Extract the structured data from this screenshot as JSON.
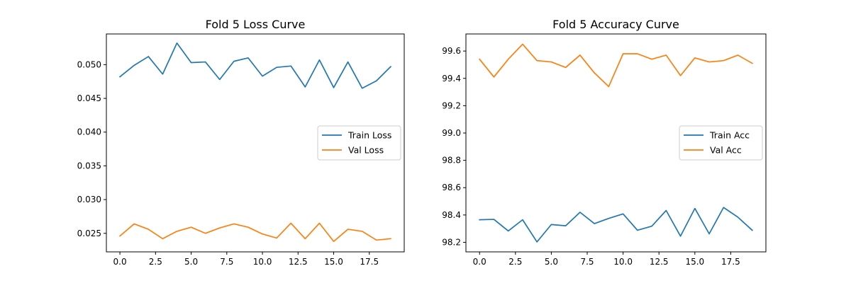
{
  "chart_data": [
    {
      "type": "line",
      "title": "Fold 5 Loss Curve",
      "xlabel": "",
      "ylabel": "",
      "xlim": [
        -0.95,
        19.95
      ],
      "ylim": [
        0.02225,
        0.05455
      ],
      "x_ticks": [
        0.0,
        2.5,
        5.0,
        7.5,
        10.0,
        12.5,
        15.0,
        17.5
      ],
      "x_tick_labels": [
        "0.0",
        "2.5",
        "5.0",
        "7.5",
        "10.0",
        "12.5",
        "15.0",
        "17.5"
      ],
      "y_ticks": [
        0.025,
        0.03,
        0.035,
        0.04,
        0.045,
        0.05
      ],
      "y_tick_labels": [
        "0.025",
        "0.030",
        "0.035",
        "0.040",
        "0.045",
        "0.050"
      ],
      "grid": false,
      "legend_position": "center-right",
      "x": [
        0,
        1,
        2,
        3,
        4,
        5,
        6,
        7,
        8,
        9,
        10,
        11,
        12,
        13,
        14,
        15,
        16,
        17,
        18,
        19
      ],
      "series": [
        {
          "name": "Train Loss",
          "color": "#1f77b4",
          "values": [
            0.0482,
            0.0499,
            0.0512,
            0.0486,
            0.0532,
            0.0503,
            0.0504,
            0.0478,
            0.0505,
            0.051,
            0.0483,
            0.0496,
            0.0498,
            0.0467,
            0.0507,
            0.0466,
            0.0504,
            0.0465,
            0.0476,
            0.0497
          ]
        },
        {
          "name": "Val Loss",
          "color": "#ff7f0e",
          "values": [
            0.0246,
            0.0264,
            0.0256,
            0.0242,
            0.0253,
            0.0259,
            0.025,
            0.0258,
            0.0264,
            0.0259,
            0.0249,
            0.0243,
            0.0265,
            0.0242,
            0.0265,
            0.0238,
            0.0256,
            0.0253,
            0.024,
            0.0242
          ]
        }
      ]
    },
    {
      "type": "line",
      "title": "Fold 5 Accuracy Curve",
      "xlabel": "",
      "ylabel": "",
      "xlim": [
        -0.95,
        19.95
      ],
      "ylim": [
        98.13,
        99.725
      ],
      "x_ticks": [
        0.0,
        2.5,
        5.0,
        7.5,
        10.0,
        12.5,
        15.0,
        17.5
      ],
      "x_tick_labels": [
        "0.0",
        "2.5",
        "5.0",
        "7.5",
        "10.0",
        "12.5",
        "15.0",
        "17.5"
      ],
      "y_ticks": [
        98.2,
        98.4,
        98.6,
        98.8,
        99.0,
        99.2,
        99.4,
        99.6
      ],
      "y_tick_labels": [
        "98.2",
        "98.4",
        "98.6",
        "98.8",
        "99.0",
        "99.2",
        "99.4",
        "99.6"
      ],
      "grid": false,
      "legend_position": "center-right",
      "x": [
        0,
        1,
        2,
        3,
        4,
        5,
        6,
        7,
        8,
        9,
        10,
        11,
        12,
        13,
        14,
        15,
        16,
        17,
        18,
        19
      ],
      "series": [
        {
          "name": "Train Acc",
          "color": "#1f77b4",
          "values": [
            98.365,
            98.368,
            98.283,
            98.365,
            98.203,
            98.33,
            98.321,
            98.42,
            98.337,
            98.375,
            98.408,
            98.288,
            98.318,
            98.433,
            98.245,
            98.448,
            98.262,
            98.455,
            98.384,
            98.288
          ]
        },
        {
          "name": "Val Acc",
          "color": "#ff7f0e",
          "values": [
            99.54,
            99.41,
            99.54,
            99.65,
            99.53,
            99.52,
            99.48,
            99.57,
            99.44,
            99.34,
            99.58,
            99.58,
            99.54,
            99.57,
            99.42,
            99.55,
            99.52,
            99.53,
            99.57,
            99.51
          ]
        }
      ]
    }
  ]
}
